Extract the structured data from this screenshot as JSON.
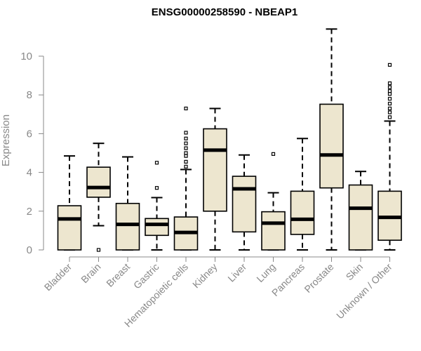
{
  "chart_data": {
    "type": "boxplot",
    "title": "ENSG00000258590 - NBEAP1",
    "xlabel": "",
    "ylabel": "Expression",
    "ylim": [
      0,
      11.5
    ],
    "yticks": [
      0,
      2,
      4,
      6,
      8,
      10
    ],
    "ytick_labels": [
      "0",
      "2",
      "4",
      "6",
      "8",
      "10"
    ],
    "grid": false,
    "colors": {
      "box_fill": "#ede6cf",
      "stroke": "#000000",
      "axis": "#888888",
      "tick_text": "#888888"
    },
    "categories": [
      "Bladder",
      "Brain",
      "Breast",
      "Gastric",
      "Hematopoietic cells",
      "Kidney",
      "Liver",
      "Lung",
      "Pancreas",
      "Prostate",
      "Skin",
      "Unknown / Other"
    ],
    "boxes": [
      {
        "q1": 0.0,
        "median": 1.6,
        "q3": 2.28,
        "wlow": 0.0,
        "whigh": 4.85,
        "outliers": []
      },
      {
        "q1": 2.72,
        "median": 3.22,
        "q3": 4.27,
        "wlow": 1.25,
        "whigh": 5.5,
        "outliers": [
          0.0
        ]
      },
      {
        "q1": 0.0,
        "median": 1.32,
        "q3": 2.4,
        "wlow": 0.0,
        "whigh": 4.8,
        "outliers": []
      },
      {
        "q1": 0.75,
        "median": 1.32,
        "q3": 1.62,
        "wlow": 0.0,
        "whigh": 2.7,
        "outliers": [
          3.2,
          4.5
        ]
      },
      {
        "q1": 0.0,
        "median": 0.9,
        "q3": 1.7,
        "wlow": 0.0,
        "whigh": 4.15,
        "outliers": [
          4.3,
          4.55,
          4.85,
          5.0,
          5.25,
          5.5,
          5.75,
          6.05,
          7.3
        ]
      },
      {
        "q1": 2.0,
        "median": 5.15,
        "q3": 6.25,
        "wlow": 0.0,
        "whigh": 7.3,
        "outliers": []
      },
      {
        "q1": 0.93,
        "median": 3.15,
        "q3": 3.8,
        "wlow": 0.0,
        "whigh": 4.9,
        "outliers": []
      },
      {
        "q1": 0.0,
        "median": 1.38,
        "q3": 1.97,
        "wlow": 0.0,
        "whigh": 2.95,
        "outliers": [
          4.95
        ]
      },
      {
        "q1": 0.8,
        "median": 1.58,
        "q3": 3.03,
        "wlow": 0.0,
        "whigh": 5.75,
        "outliers": []
      },
      {
        "q1": 3.2,
        "median": 4.9,
        "q3": 7.52,
        "wlow": 0.0,
        "whigh": 11.4,
        "outliers": []
      },
      {
        "q1": 0.0,
        "median": 2.15,
        "q3": 3.35,
        "wlow": 0.0,
        "whigh": 4.05,
        "outliers": []
      },
      {
        "q1": 0.5,
        "median": 1.68,
        "q3": 3.03,
        "wlow": 0.0,
        "whigh": 6.65,
        "outliers": [
          6.85,
          7.1,
          7.3,
          7.55,
          7.8,
          8.05,
          8.2,
          8.4,
          8.6,
          9.55
        ]
      }
    ]
  }
}
